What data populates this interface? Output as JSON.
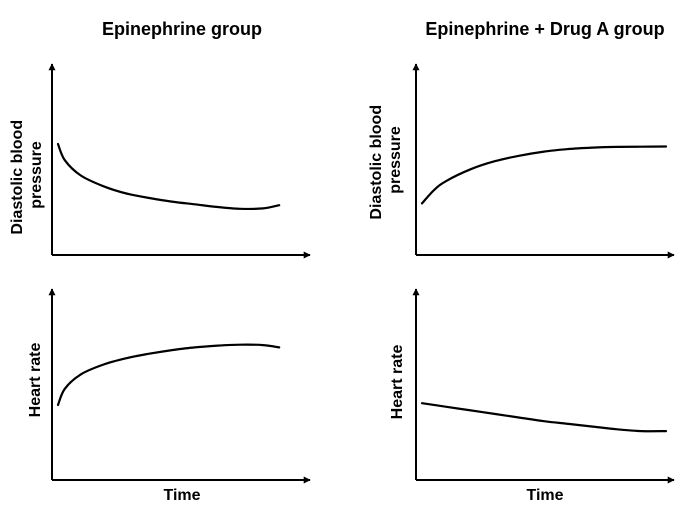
{
  "chart_data": [
    {
      "type": "line",
      "group_title": "Epinephrine group",
      "title": "Epinephrine group",
      "xlabel": "",
      "ylabel": "Diastolic blood pressure",
      "ylabel_lines": [
        "Diastolic blood",
        "pressure"
      ],
      "xlim": [
        0,
        10
      ],
      "ylim": [
        0,
        10
      ],
      "grid": false,
      "series": [
        {
          "name": "Diastolic blood pressure",
          "x": [
            0,
            0.3,
            1,
            2,
            3,
            4,
            5,
            6,
            7,
            8,
            9,
            9.7
          ],
          "y": [
            6.0,
            5.1,
            4.25,
            3.65,
            3.25,
            3.0,
            2.8,
            2.65,
            2.5,
            2.4,
            2.42,
            2.6
          ]
        }
      ]
    },
    {
      "type": "line",
      "group_title": "Epinephrine + Drug A group",
      "title": "Epinephrine + Drug A group",
      "xlabel": "",
      "ylabel": "Diastolic blood pressure",
      "ylabel_lines": [
        "Diastolic blood",
        "pressure"
      ],
      "xlim": [
        0,
        10
      ],
      "ylim": [
        0,
        10
      ],
      "grid": false,
      "series": [
        {
          "name": "Diastolic blood pressure",
          "x": [
            0,
            0.5,
            1,
            2,
            3,
            4,
            5,
            6,
            7,
            8,
            9,
            10
          ],
          "y": [
            2.7,
            3.45,
            3.95,
            4.6,
            5.05,
            5.35,
            5.58,
            5.72,
            5.8,
            5.84,
            5.85,
            5.86
          ]
        }
      ]
    },
    {
      "type": "line",
      "group_title": "Epinephrine group",
      "title": "",
      "xlabel": "Time",
      "ylabel": "Heart rate",
      "ylabel_lines": [
        "Heart rate"
      ],
      "xlim": [
        0,
        10
      ],
      "ylim": [
        0,
        10
      ],
      "grid": false,
      "series": [
        {
          "name": "Heart rate",
          "x": [
            0,
            0.3,
            1,
            2,
            3,
            4,
            5,
            6,
            7,
            8,
            9,
            9.7
          ],
          "y": [
            4.0,
            4.9,
            5.7,
            6.25,
            6.6,
            6.85,
            7.05,
            7.2,
            7.3,
            7.35,
            7.33,
            7.2
          ]
        }
      ]
    },
    {
      "type": "line",
      "group_title": "Epinephrine + Drug A group",
      "title": "",
      "xlabel": "Time",
      "ylabel": "Heart rate",
      "ylabel_lines": [
        "Heart rate"
      ],
      "xlim": [
        0,
        10
      ],
      "ylim": [
        0,
        10
      ],
      "grid": false,
      "series": [
        {
          "name": "Heart rate",
          "x": [
            0,
            1,
            2,
            3,
            4,
            5,
            6,
            7,
            8,
            9,
            10
          ],
          "y": [
            4.1,
            3.9,
            3.7,
            3.5,
            3.3,
            3.1,
            2.95,
            2.8,
            2.65,
            2.55,
            2.55
          ]
        }
      ]
    }
  ]
}
